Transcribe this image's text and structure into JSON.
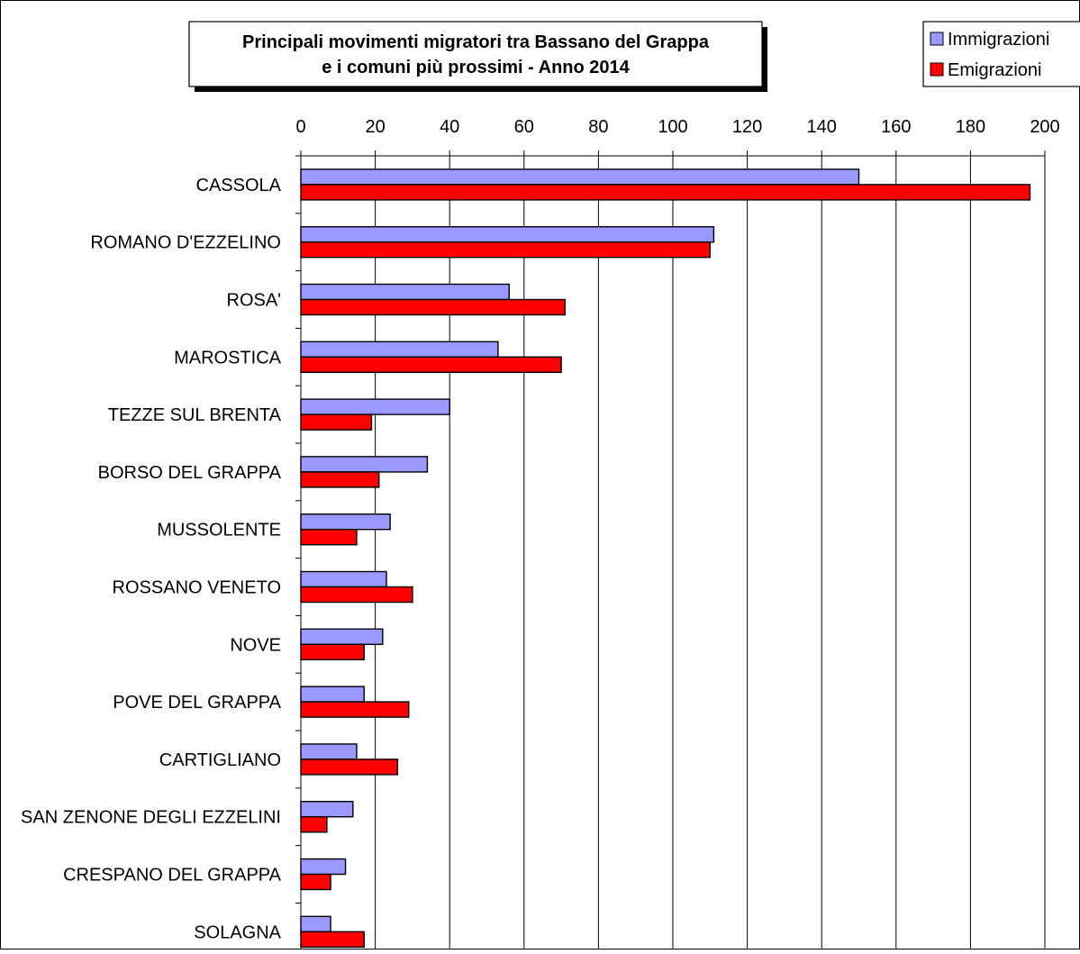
{
  "chart_data": {
    "type": "bar",
    "orientation": "horizontal",
    "title": "Principali movimenti migratori tra Bassano del Grappa e i comuni più prossimi - Anno 2014",
    "title_lines": [
      "Principali movimenti migratori tra Bassano del Grappa",
      "e i comuni più prossimi - Anno 2014"
    ],
    "categories": [
      "CASSOLA",
      "ROMANO D'EZZELINO",
      "ROSA'",
      "MAROSTICA",
      "TEZZE SUL BRENTA",
      "BORSO DEL GRAPPA",
      "MUSSOLENTE",
      "ROSSANO VENETO",
      "NOVE",
      "POVE DEL GRAPPA",
      "CARTIGLIANO",
      "SAN ZENONE DEGLI EZZELINI",
      "CRESPANO DEL GRAPPA",
      "SOLAGNA"
    ],
    "series": [
      {
        "name": "Immigrazioni",
        "color": "#9999ff",
        "values": [
          150,
          111,
          56,
          53,
          40,
          34,
          24,
          23,
          22,
          17,
          15,
          14,
          12,
          8
        ]
      },
      {
        "name": "Emigrazioni",
        "color": "#ff0000",
        "values": [
          196,
          110,
          71,
          70,
          19,
          21,
          15,
          30,
          17,
          29,
          26,
          7,
          8,
          17
        ]
      }
    ],
    "xlim": [
      0,
      200
    ],
    "xticks": [
      0,
      20,
      40,
      60,
      80,
      100,
      120,
      140,
      160,
      180,
      200
    ],
    "grid": true,
    "axis_position": "top",
    "legend_position": "top-right",
    "xlabel": "",
    "ylabel": ""
  }
}
